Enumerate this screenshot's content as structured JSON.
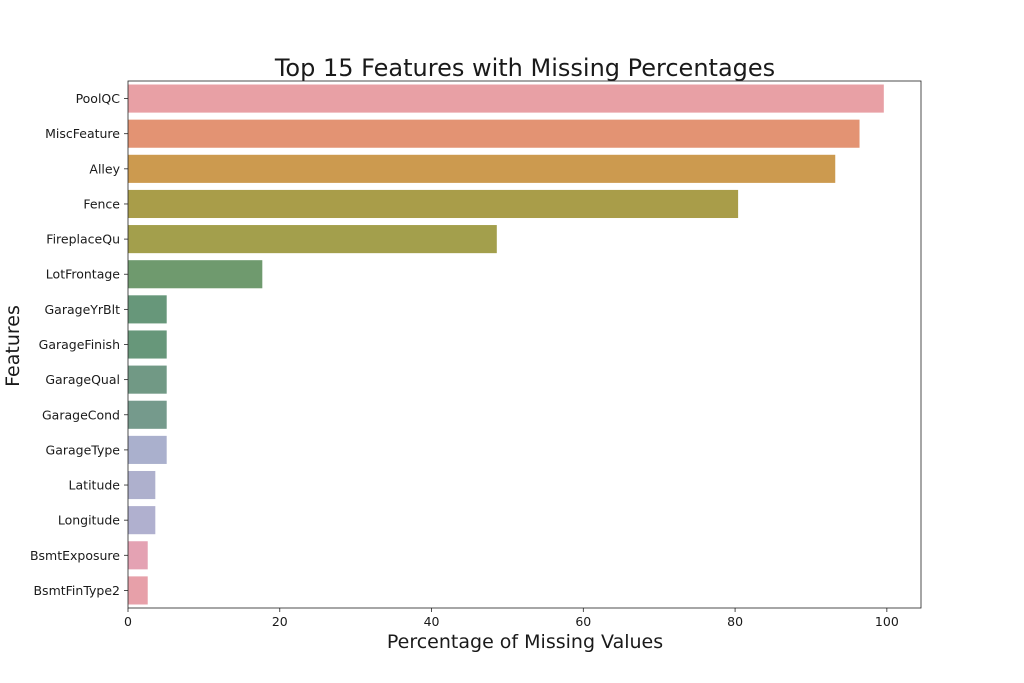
{
  "chart_data": {
    "type": "bar",
    "orientation": "horizontal",
    "title": "Top 15 Features with Missing Percentages",
    "xlabel": "Percentage of Missing Values",
    "ylabel": "Features",
    "xlim": [
      0,
      104.5
    ],
    "xticks": [
      0,
      20,
      40,
      60,
      80,
      100
    ],
    "grid": false,
    "legend": "none",
    "categories": [
      "PoolQC",
      "MiscFeature",
      "Alley",
      "Fence",
      "FireplaceQu",
      "LotFrontage",
      "GarageYrBlt",
      "GarageFinish",
      "GarageQual",
      "GarageCond",
      "GarageType",
      "Latitude",
      "Longitude",
      "BsmtExposure",
      "BsmtFinType2"
    ],
    "values": [
      99.6,
      96.4,
      93.2,
      80.4,
      48.6,
      17.7,
      5.1,
      5.1,
      5.1,
      5.1,
      5.1,
      3.6,
      3.6,
      2.6,
      2.6
    ],
    "colors": [
      "#e8a0a5",
      "#e39373",
      "#cc9a4f",
      "#a99d49",
      "#a39f4c",
      "#6f9a6e",
      "#67977a",
      "#67977a",
      "#719985",
      "#759a8c",
      "#aab0cd",
      "#aeb0cd",
      "#b0b0cf",
      "#e4a2b3",
      "#e7a0a9"
    ]
  }
}
